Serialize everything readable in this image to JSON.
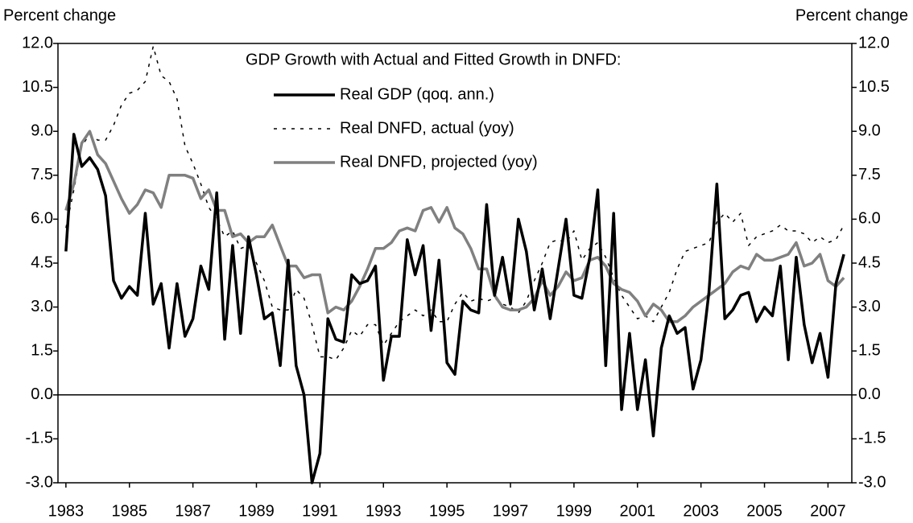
{
  "chart_data": {
    "type": "line",
    "legend_title": "GDP Growth with Actual and Fitted Growth in DNFD:",
    "y_label": "Percent change",
    "y2_label": "Percent change",
    "x": [
      1983,
      1983.25,
      1983.5,
      1983.75,
      1984,
      1984.25,
      1984.5,
      1984.75,
      1985,
      1985.25,
      1985.5,
      1985.75,
      1986,
      1986.25,
      1986.5,
      1986.75,
      1987,
      1987.25,
      1987.5,
      1987.75,
      1988,
      1988.25,
      1988.5,
      1988.75,
      1989,
      1989.25,
      1989.5,
      1989.75,
      1990,
      1990.25,
      1990.5,
      1990.75,
      1991,
      1991.25,
      1991.5,
      1991.75,
      1992,
      1992.25,
      1992.5,
      1992.75,
      1993,
      1993.25,
      1993.5,
      1993.75,
      1994,
      1994.25,
      1994.5,
      1994.75,
      1995,
      1995.25,
      1995.5,
      1995.75,
      1996,
      1996.25,
      1996.5,
      1996.75,
      1997,
      1997.25,
      1997.5,
      1997.75,
      1998,
      1998.25,
      1998.5,
      1998.75,
      1999,
      1999.25,
      1999.5,
      1999.75,
      2000,
      2000.25,
      2000.5,
      2000.75,
      2001,
      2001.25,
      2001.5,
      2001.75,
      2002,
      2002.25,
      2002.5,
      2002.75,
      2003,
      2003.25,
      2003.5,
      2003.75,
      2004,
      2004.25,
      2004.5,
      2004.75,
      2005,
      2005.25,
      2005.5,
      2005.75,
      2006,
      2006.25,
      2006.5,
      2006.75,
      2007,
      2007.25,
      2007.5
    ],
    "series": [
      {
        "name": "Real GDP (qoq. ann.)",
        "color": "#000000",
        "dash": "solid",
        "width": 3.5,
        "values": [
          4.9,
          8.9,
          7.8,
          8.1,
          7.7,
          6.8,
          3.9,
          3.3,
          3.7,
          3.4,
          6.2,
          3.1,
          3.8,
          1.6,
          3.8,
          2.0,
          2.6,
          4.4,
          3.6,
          6.9,
          1.9,
          5.1,
          2.1,
          5.4,
          4.1,
          2.6,
          2.8,
          1.0,
          4.6,
          1.0,
          0.0,
          -3.0,
          -2.0,
          2.6,
          1.9,
          1.8,
          4.1,
          3.8,
          3.9,
          4.4,
          0.5,
          2.0,
          2.0,
          5.3,
          4.1,
          5.1,
          2.2,
          4.6,
          1.1,
          0.7,
          3.2,
          2.9,
          2.8,
          6.5,
          3.4,
          4.7,
          3.1,
          6.0,
          4.9,
          2.9,
          4.3,
          2.6,
          4.3,
          6.0,
          3.4,
          3.3,
          4.7,
          7.0,
          1.0,
          6.2,
          -0.5,
          2.1,
          -0.5,
          1.2,
          -1.4,
          1.6,
          2.7,
          2.1,
          2.3,
          0.2,
          1.2,
          3.5,
          7.2,
          2.6,
          2.9,
          3.4,
          3.5,
          2.5,
          3.0,
          2.7,
          4.4,
          1.2,
          4.7,
          2.4,
          1.1,
          2.1,
          0.6,
          3.8,
          4.8
        ]
      },
      {
        "name": "Real DNFD, actual (yoy)",
        "color": "#000000",
        "dash": "dotted",
        "width": 1.5,
        "values": [
          5.7,
          7.0,
          8.5,
          8.9,
          8.7,
          8.7,
          9.2,
          9.9,
          10.3,
          10.4,
          10.7,
          11.9,
          10.9,
          10.7,
          10.1,
          8.5,
          7.9,
          7.2,
          6.4,
          6.0,
          5.4,
          5.6,
          5.0,
          5.1,
          4.5,
          3.9,
          3.0,
          2.9,
          2.9,
          3.6,
          3.3,
          2.4,
          1.3,
          1.3,
          1.2,
          1.6,
          2.2,
          2.0,
          2.4,
          2.4,
          1.7,
          2.1,
          2.5,
          2.7,
          2.9,
          2.7,
          2.9,
          2.5,
          2.5,
          3.1,
          3.5,
          3.2,
          3.3,
          3.2,
          3.3,
          3.1,
          3.0,
          2.8,
          3.2,
          3.9,
          4.5,
          5.2,
          5.3,
          5.2,
          5.6,
          4.6,
          5.0,
          5.2,
          4.7,
          4.0,
          3.4,
          3.0,
          2.6,
          2.7,
          2.5,
          3.0,
          3.5,
          4.3,
          4.9,
          5.0,
          5.1,
          5.2,
          5.9,
          6.2,
          5.9,
          6.2,
          5.1,
          5.4,
          5.5,
          5.6,
          5.8,
          5.6,
          5.6,
          5.5,
          5.2,
          5.4,
          5.2,
          5.3,
          5.8
        ]
      },
      {
        "name": "Real DNFD, projected (yoy)",
        "color": "#808080",
        "dash": "solid",
        "width": 3.5,
        "values": [
          6.3,
          7.2,
          8.6,
          9.0,
          8.2,
          7.9,
          7.3,
          6.7,
          6.2,
          6.5,
          7.0,
          6.9,
          6.4,
          7.5,
          7.5,
          7.5,
          7.4,
          6.7,
          7.0,
          6.3,
          6.3,
          5.4,
          5.5,
          5.2,
          5.4,
          5.4,
          5.8,
          5.1,
          4.4,
          4.4,
          4.0,
          4.1,
          4.1,
          2.8,
          3.0,
          2.9,
          3.2,
          3.7,
          4.3,
          5.0,
          5.0,
          5.2,
          5.6,
          5.7,
          5.6,
          6.3,
          6.4,
          5.9,
          6.4,
          5.7,
          5.5,
          5.0,
          4.3,
          4.3,
          3.4,
          3.0,
          2.9,
          2.9,
          3.0,
          3.3,
          3.9,
          3.4,
          3.7,
          4.2,
          3.9,
          4.0,
          4.6,
          4.7,
          4.4,
          3.8,
          3.6,
          3.5,
          3.2,
          2.7,
          3.1,
          2.9,
          2.5,
          2.5,
          2.7,
          3.0,
          3.2,
          3.4,
          3.6,
          3.8,
          4.2,
          4.4,
          4.3,
          4.8,
          4.6,
          4.6,
          4.7,
          4.8,
          5.2,
          4.4,
          4.5,
          4.8,
          3.9,
          3.7,
          4.0
        ]
      }
    ],
    "xlim": [
      1982.75,
      2007.75
    ],
    "xticks": [
      1983,
      1985,
      1987,
      1989,
      1991,
      1993,
      1995,
      1997,
      1999,
      2001,
      2003,
      2005,
      2007
    ],
    "ylim": [
      -3,
      12
    ],
    "yticks": [
      {
        "value": -3,
        "label": "-3.0"
      },
      -1.5,
      {
        "value": 0,
        "label": "0.0"
      },
      1.5,
      {
        "value": 3,
        "label": "3.0"
      },
      4.5,
      {
        "value": 6,
        "label": "6.0"
      },
      7.5,
      {
        "value": 9,
        "label": "9.0"
      },
      10.5,
      {
        "value": 12,
        "label": "12.0"
      }
    ],
    "y2lim": [
      -3,
      12
    ],
    "y2ticks": [
      {
        "value": -3,
        "label": "-3.0"
      },
      -1.5,
      {
        "value": 0,
        "label": "0.0"
      },
      1.5,
      {
        "value": 3,
        "label": "3.0"
      },
      4.5,
      {
        "value": 6,
        "label": "6.0"
      },
      7.5,
      {
        "value": 9,
        "label": "9.0"
      },
      10.5,
      {
        "value": 12,
        "label": "12.0"
      }
    ],
    "zero_line": true
  }
}
